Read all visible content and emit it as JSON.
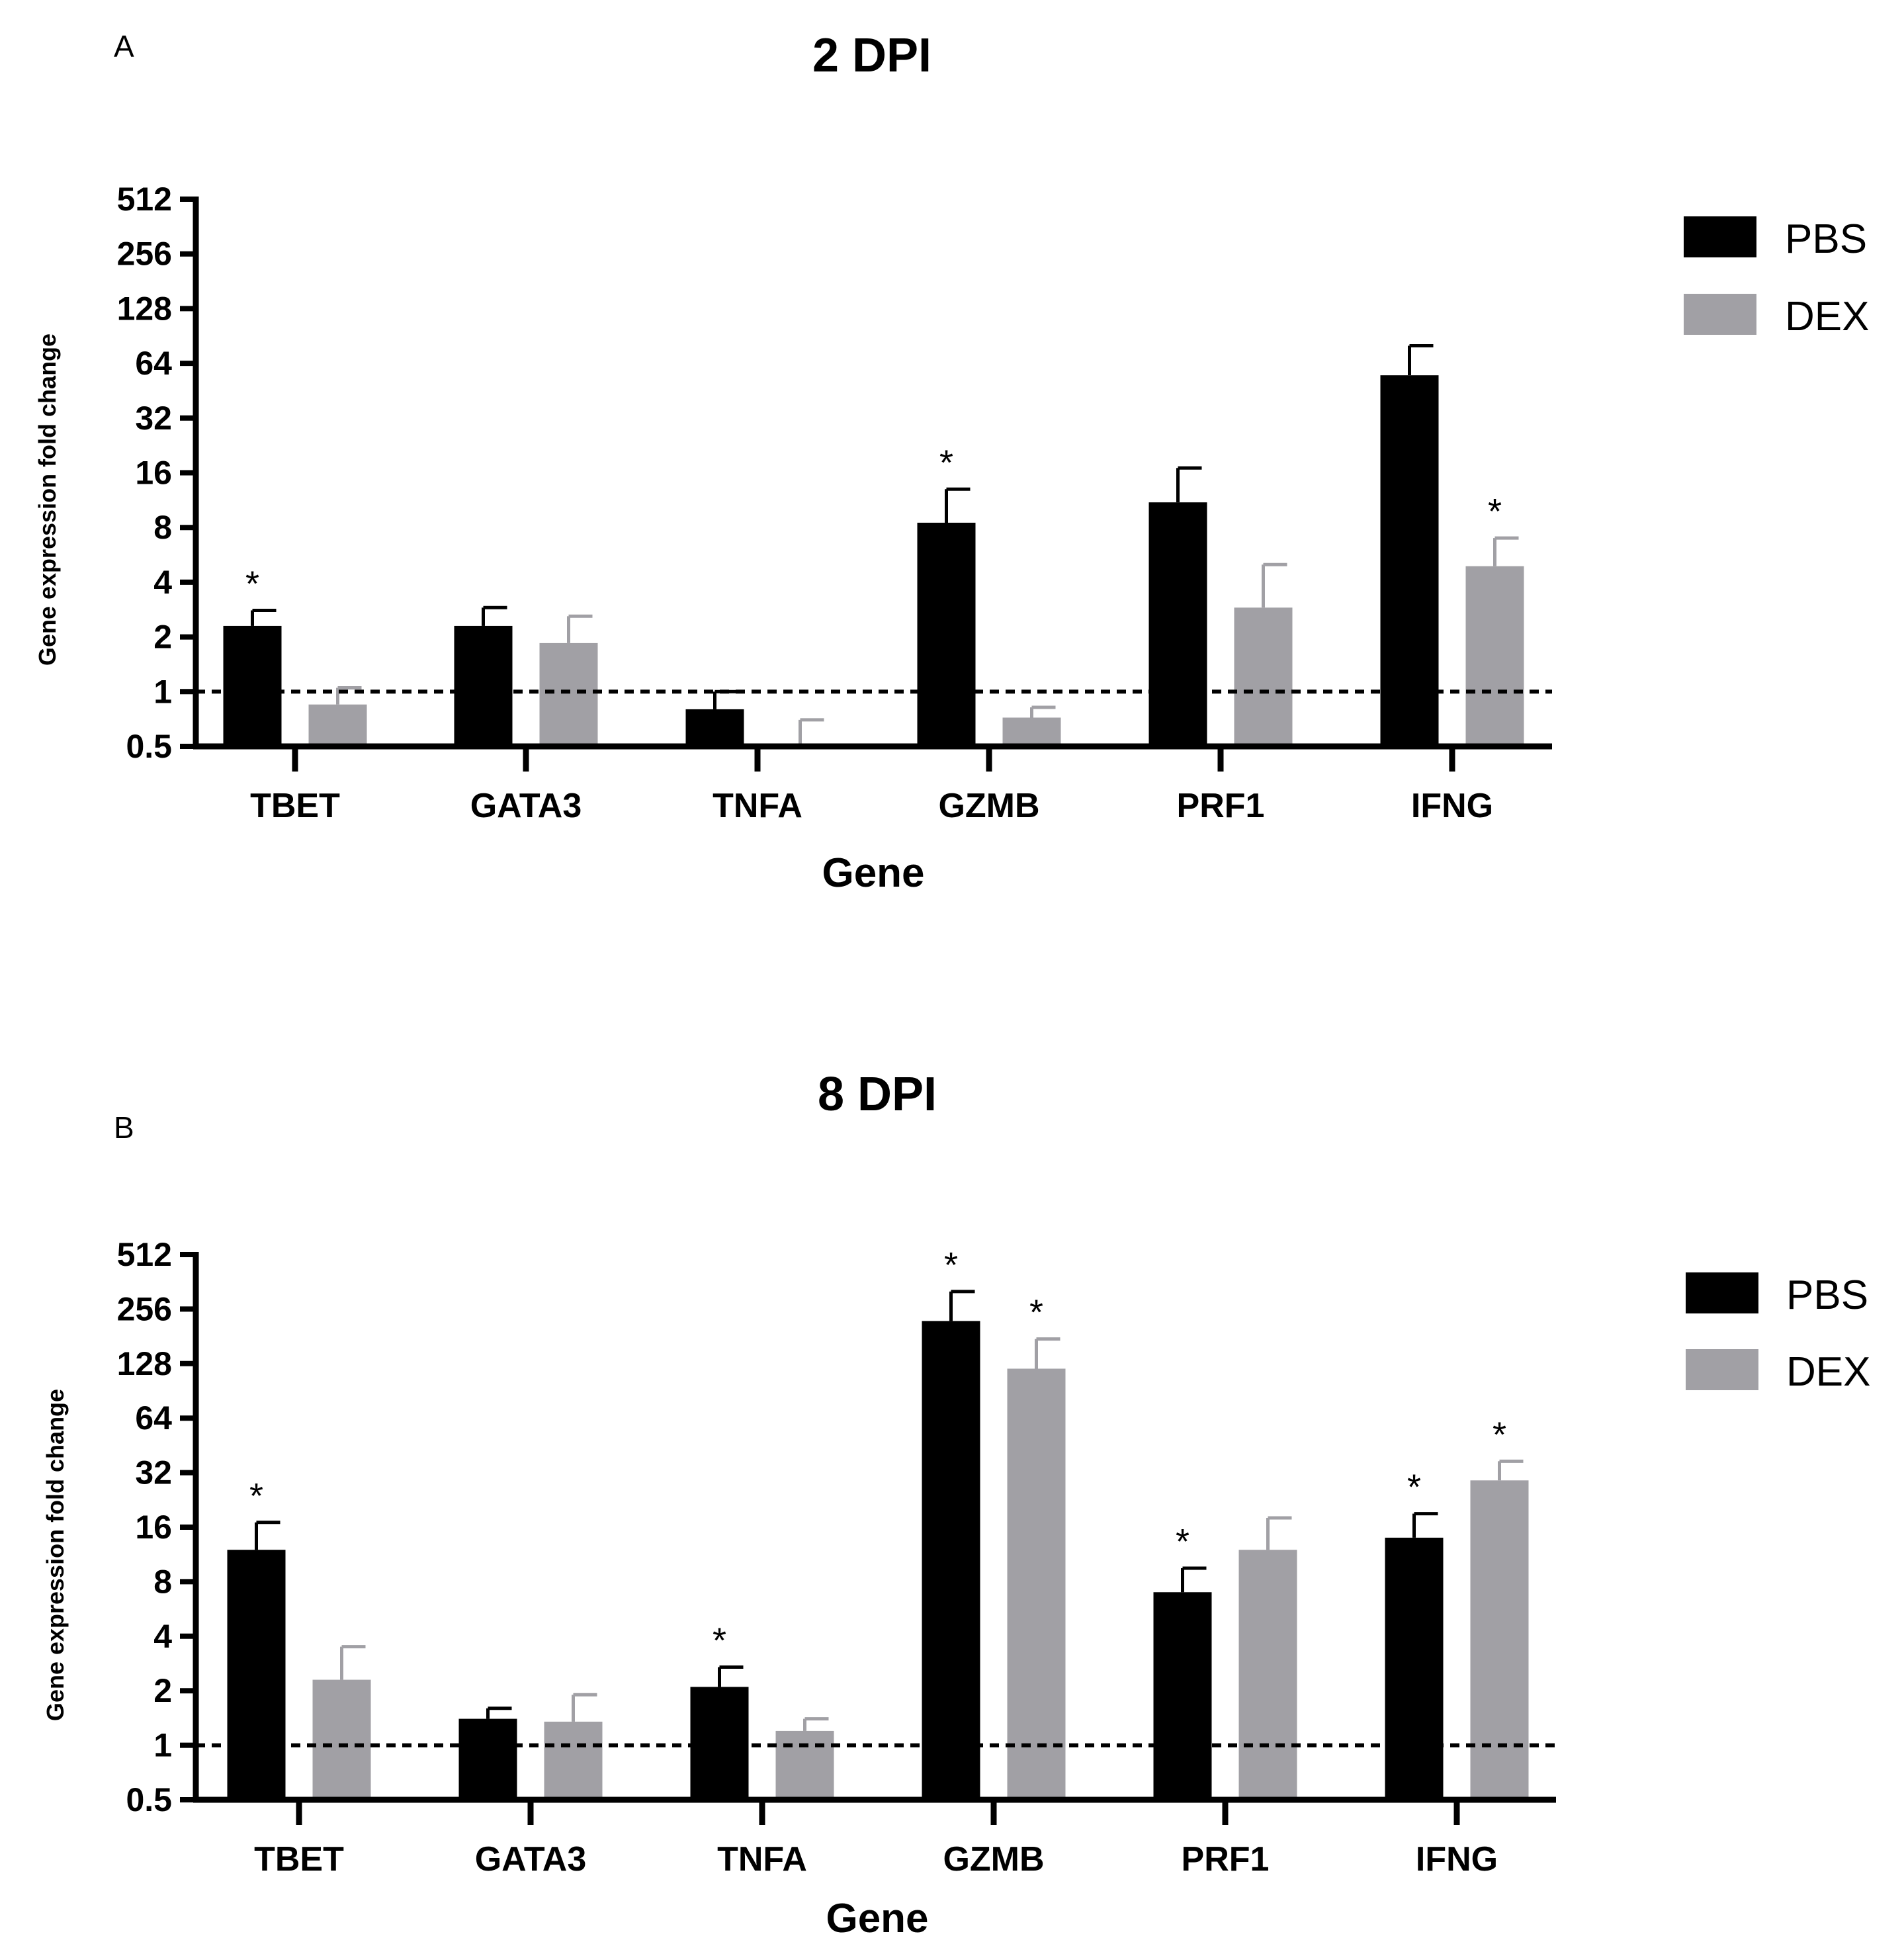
{
  "colors": {
    "PBS": "#000000",
    "DEX": "#a1a0a5",
    "axis": "#000000"
  },
  "chart_data": [
    {
      "panel": "A",
      "type": "bar",
      "title": "2 DPI",
      "xlabel": "Gene",
      "ylabel": "Gene expression fold change",
      "yscale": "log2",
      "ylim": [
        0.5,
        512
      ],
      "yticks": [
        0.5,
        1,
        2,
        4,
        8,
        16,
        32,
        64,
        128,
        256,
        512
      ],
      "ytick_labels": [
        "0.5",
        "1",
        "2",
        "4",
        "8",
        "16",
        "32",
        "64",
        "128",
        "256",
        "512"
      ],
      "reference_line": 1,
      "categories": [
        "TBET",
        "GATA3",
        "TNFA",
        "GZMB",
        "PRF1",
        "IFNG"
      ],
      "series": [
        {
          "name": "PBS",
          "values": [
            2.3,
            2.3,
            0.8,
            8.5,
            11,
            55
          ],
          "errors": [
            2.8,
            2.9,
            1.0,
            13,
            17,
            80
          ],
          "stars": [
            true,
            false,
            false,
            true,
            false,
            false
          ]
        },
        {
          "name": "DEX",
          "values": [
            0.85,
            1.85,
            0.5,
            0.72,
            2.9,
            4.9
          ],
          "errors": [
            1.05,
            2.6,
            0.7,
            0.82,
            5,
            7
          ],
          "stars": [
            false,
            false,
            false,
            false,
            false,
            true
          ]
        }
      ],
      "legend": [
        "PBS",
        "DEX"
      ],
      "star_label": "*"
    },
    {
      "panel": "B",
      "type": "bar",
      "title": "8 DPI",
      "xlabel": "Gene",
      "ylabel": "Gene expression fold change",
      "yscale": "log2",
      "ylim": [
        0.5,
        512
      ],
      "yticks": [
        0.5,
        1,
        2,
        4,
        8,
        16,
        32,
        64,
        128,
        256,
        512
      ],
      "ytick_labels": [
        "0.5",
        "1",
        "2",
        "4",
        "8",
        "16",
        "32",
        "64",
        "128",
        "256",
        "512"
      ],
      "reference_line": 1,
      "categories": [
        "TBET",
        "GATA3",
        "TNFA",
        "GZMB",
        "PRF1",
        "IFNG"
      ],
      "series": [
        {
          "name": "PBS",
          "values": [
            12,
            1.4,
            2.1,
            220,
            7,
            14
          ],
          "errors": [
            17,
            1.6,
            2.7,
            320,
            9.5,
            19
          ],
          "stars": [
            true,
            false,
            true,
            true,
            true,
            true
          ]
        },
        {
          "name": "DEX",
          "values": [
            2.3,
            1.35,
            1.2,
            120,
            12,
            29
          ],
          "errors": [
            3.5,
            1.9,
            1.4,
            175,
            18,
            37
          ],
          "stars": [
            false,
            false,
            false,
            true,
            false,
            true
          ]
        }
      ],
      "legend": [
        "PBS",
        "DEX"
      ],
      "star_label": "*"
    }
  ]
}
